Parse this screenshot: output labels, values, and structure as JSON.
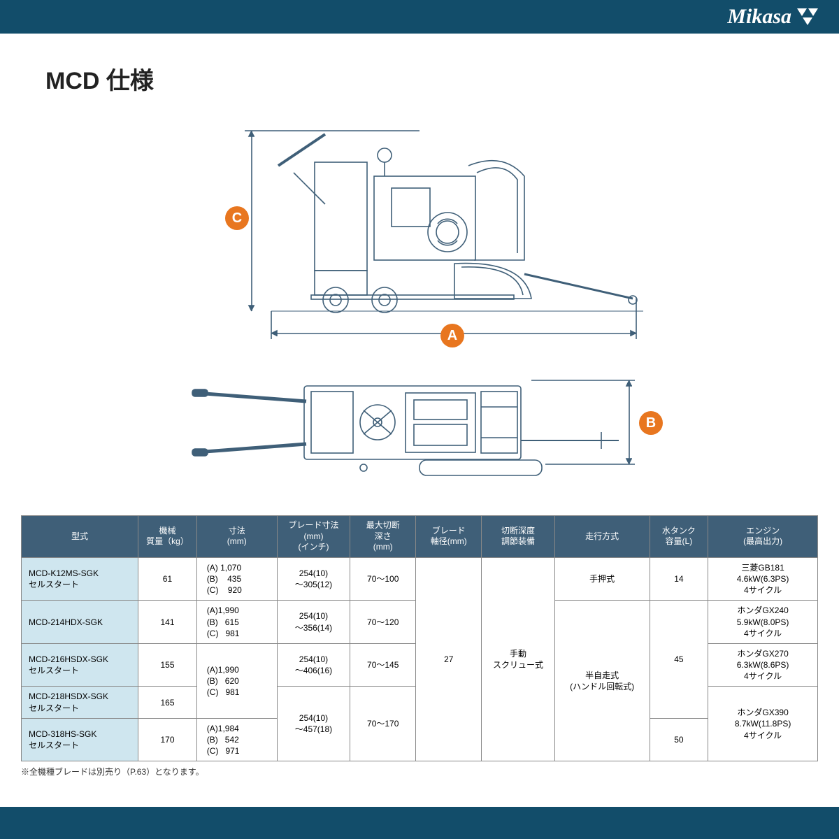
{
  "brand": {
    "name": "Mikasa"
  },
  "title": "MCD 仕様",
  "labels": {
    "A": "A",
    "B": "B",
    "C": "C"
  },
  "colors": {
    "band": "#124d6a",
    "header_bg": "#3f5f78",
    "model_bg": "#cfe6ef",
    "accent": "#e8761f",
    "line": "#3f5f78"
  },
  "table": {
    "columns": [
      "型式",
      "機械\n質量（kg）",
      "寸法\n(mm)",
      "ブレード寸法\n(mm)\n(インチ)",
      "最大切断\n深さ\n(mm)",
      "ブレード\n軸径(mm)",
      "切断深度\n調節装備",
      "走行方式",
      "水タンク\n容量(L)",
      "エンジン\n(最高出力)"
    ],
    "rows": [
      {
        "model": "MCD-K12MS-SGK\nセルスタート",
        "mass": "61",
        "dims": "(A) 1,070\n(B)    435\n(C)    920",
        "blade": "254(10)\n～305(12)",
        "depth": "70～100",
        "travel": "手押式",
        "tank": "14",
        "engine": "三菱GB181\n4.6kW(6.3PS)\n4サイクル"
      },
      {
        "model": "MCD-214HDX-SGK",
        "mass": "141",
        "dims": "(A)1,990\n(B)   615\n(C)   981",
        "blade": "254(10)\n～356(14)",
        "depth": "70～120",
        "engine": "ホンダGX240\n5.9kW(8.0PS)\n4サイクル"
      },
      {
        "model": "MCD-216HSDX-SGK\nセルスタート",
        "mass": "155",
        "dims_merged": "(A)1,990\n(B)   620\n(C)   981",
        "blade": "254(10)\n～406(16)",
        "depth": "70～145",
        "engine": "ホンダGX270\n6.3kW(8.6PS)\n4サイクル"
      },
      {
        "model": "MCD-218HSDX-SGK\nセルスタート",
        "mass": "165",
        "blade_merged": "254(10)\n～457(18)",
        "depth_merged": "70～170"
      },
      {
        "model": "MCD-318HS-SGK\nセルスタート",
        "mass": "170",
        "dims": "(A)1,984\n(B)   542\n(C)   971",
        "tank": "50",
        "engine_merged": "ホンダGX390\n8.7kW(11.8PS)\n4サイクル"
      }
    ],
    "shaft": "27",
    "adjuster": "手動\nスクリュー式",
    "travel_auto": "半自走式\n(ハンドル回転式)",
    "tank_45": "45"
  },
  "footnote": "※全機種ブレードは別売り（P.63）となります。"
}
